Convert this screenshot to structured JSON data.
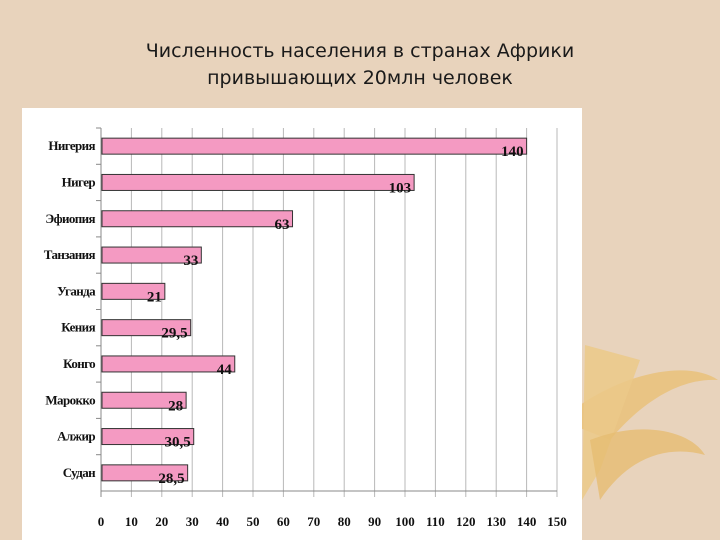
{
  "slide": {
    "title_line1": "Численность населения в странах Африки",
    "title_line2": "привышающих 20млн человек",
    "background": "#e8d3bc"
  },
  "chart_data": {
    "type": "bar",
    "orientation": "horizontal",
    "categories": [
      "Нигерия",
      "Нигер",
      "Эфиопия",
      "Танзания",
      "Уганда",
      "Кения",
      "Конго",
      "Марокко",
      "Алжир",
      "Судан"
    ],
    "values": [
      140,
      103,
      63,
      33,
      21,
      29.5,
      44,
      28,
      30.5,
      28.5
    ],
    "data_labels": [
      "140",
      "103",
      "63",
      "33",
      "21",
      "29,5",
      "44",
      "28",
      "30,5",
      "28,5"
    ],
    "xlim": [
      0,
      150
    ],
    "xticks": [
      0,
      10,
      20,
      30,
      40,
      50,
      60,
      70,
      80,
      90,
      100,
      110,
      120,
      130,
      140,
      150
    ],
    "grid": "vertical",
    "bar_color": "#f49ac2",
    "gridline_color": "#b8b8b8"
  }
}
